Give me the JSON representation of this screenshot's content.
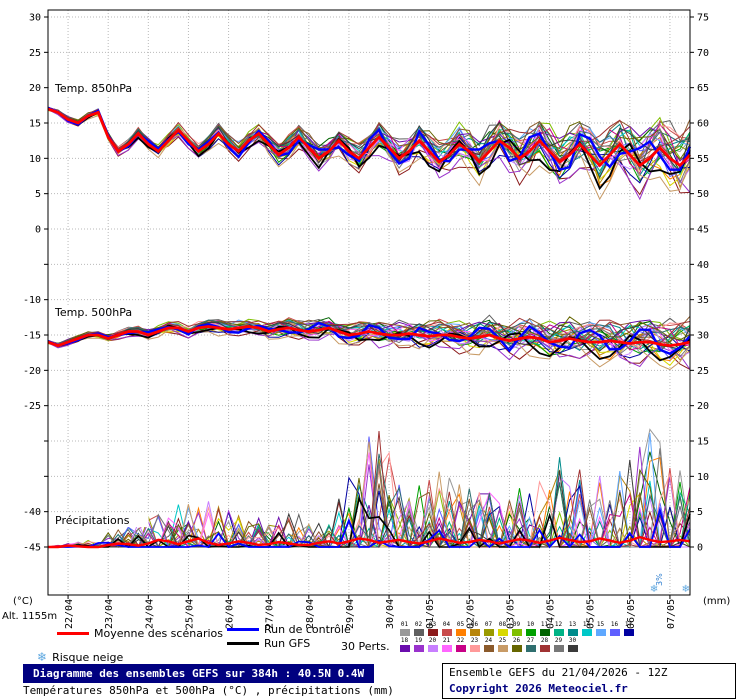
{
  "axes": {
    "left_unit": "(°C)",
    "right_unit": "(mm)",
    "left_labels": [
      30,
      25,
      20,
      15,
      10,
      5,
      0,
      -10,
      -15,
      -20,
      -25,
      -40,
      -45
    ],
    "right_labels": [
      75,
      70,
      65,
      60,
      55,
      50,
      45,
      40,
      35,
      30,
      25,
      20,
      15,
      10,
      5,
      0
    ],
    "dates": [
      "22/04",
      "23/04",
      "24/04",
      "25/04",
      "26/04",
      "27/04",
      "28/04",
      "29/04",
      "30/04",
      "01/05",
      "02/05",
      "03/05",
      "04/05",
      "05/05",
      "06/05",
      "07/05"
    ]
  },
  "chart_data": [
    {
      "type": "line",
      "panel": "temp850",
      "title": "Temp. 850hPa",
      "x_start": "21/04 12Z",
      "x_end": "07/05 12Z",
      "x_step_hours": 6,
      "mean": [
        17,
        16.5,
        15.5,
        15,
        16,
        16.5,
        13,
        11,
        12,
        13.5,
        12,
        11,
        12.5,
        14,
        12.5,
        11,
        12,
        13.5,
        12,
        11,
        12.5,
        13.5,
        12,
        10.5,
        11.5,
        13,
        11.5,
        10,
        11,
        12.5,
        11,
        10,
        11.5,
        13,
        11.5,
        10,
        11,
        12.5,
        11,
        9.5,
        10.5,
        12,
        11,
        9.5,
        11,
        12.5,
        11.5,
        10,
        11,
        12.5,
        11,
        9.5,
        10.5,
        12,
        10.5,
        9,
        10.5,
        12,
        10.5,
        9,
        10,
        11.5,
        10,
        9,
        10.5
      ],
      "spread_daily": [
        0.3,
        0.5,
        0.8,
        1,
        1.2,
        1.5,
        1.8,
        2,
        2.3,
        2.6,
        3,
        3.3,
        3.6,
        4,
        4.5,
        5,
        5.5
      ],
      "series_meta": {
        "mean": "Moyenne des scénarios",
        "control": "Run de contrôle",
        "gfs": "Run GFS",
        "members": 30
      }
    },
    {
      "type": "line",
      "panel": "temp500",
      "title": "Temp. 500hPa",
      "x_start": "21/04 12Z",
      "x_end": "07/05 12Z",
      "x_step_hours": 6,
      "mean": [
        -16,
        -16.5,
        -16,
        -15.5,
        -15,
        -15,
        -15.5,
        -15,
        -14.5,
        -14.5,
        -15,
        -14.5,
        -14,
        -14,
        -14.5,
        -14,
        -13.8,
        -14,
        -14.2,
        -14,
        -13.8,
        -14,
        -14.5,
        -14.2,
        -14,
        -14.3,
        -14.5,
        -14.3,
        -14,
        -14.5,
        -15,
        -14.8,
        -14.5,
        -14.8,
        -15,
        -15,
        -14.8,
        -15,
        -15.2,
        -15,
        -15,
        -15.3,
        -15.5,
        -15.3,
        -15,
        -15.5,
        -15.8,
        -15.5,
        -15.3,
        -15.5,
        -16,
        -15.8,
        -15.5,
        -15.8,
        -16,
        -16,
        -15.8,
        -16,
        -16.2,
        -16,
        -16,
        -16.3,
        -16.5,
        -16.3,
        -16
      ],
      "spread_daily": [
        0.3,
        0.5,
        0.7,
        0.9,
        1,
        1.2,
        1.4,
        1.6,
        1.8,
        2,
        2.2,
        2.5,
        2.8,
        3,
        3.3,
        3.6,
        4
      ]
    },
    {
      "type": "line",
      "panel": "precip",
      "title": "Précipitations",
      "unit": "mm",
      "x_start": "21/04 12Z",
      "x_end": "07/05 12Z",
      "x_step_hours": 6,
      "mean": [
        0,
        0,
        0.2,
        0.1,
        0,
        0,
        0.3,
        0.5,
        0.4,
        0.2,
        0.5,
        1,
        0.8,
        0.4,
        0.8,
        1.2,
        0.6,
        0.3,
        0.5,
        0.8,
        0.6,
        0.3,
        0.4,
        0.7,
        0.5,
        0.3,
        0.3,
        0.6,
        0.8,
        0.5,
        0.8,
        1.2,
        1,
        0.6,
        0.8,
        1,
        0.7,
        0.5,
        0.8,
        1.2,
        0.9,
        0.6,
        0.7,
        1,
        0.8,
        0.5,
        0.8,
        1.1,
        0.9,
        0.6,
        0.9,
        1.3,
        1,
        0.7,
        0.8,
        1.2,
        0.9,
        0.6,
        0.9,
        1.4,
        1,
        0.7,
        0.8,
        1,
        0.8
      ],
      "env_max_daily": [
        0,
        1,
        3,
        6,
        7,
        4,
        5,
        4,
        20,
        8,
        12,
        8,
        10,
        14,
        9,
        17,
        10
      ]
    }
  ],
  "legend": {
    "mean": "Moyenne des scénarios",
    "control": "Run de contrôle",
    "gfs": "Run GFS",
    "perts_label": "30 Perts.",
    "snow": "Risque neige",
    "snow_icon": "❄",
    "member_ids": [
      "01",
      "02",
      "03",
      "04",
      "05",
      "06",
      "07",
      "08",
      "09",
      "10",
      "11",
      "12",
      "13",
      "14",
      "15",
      "16",
      "17",
      "18",
      "19",
      "20",
      "21",
      "22",
      "23",
      "24",
      "25",
      "26",
      "27",
      "28",
      "29",
      "30"
    ],
    "member_colors": [
      "#999999",
      "#5f5f5f",
      "#8b1a1a",
      "#c84b4b",
      "#ff7f00",
      "#b8860b",
      "#9a9a00",
      "#d8d800",
      "#7fbf00",
      "#00a000",
      "#006400",
      "#00b386",
      "#008b8b",
      "#00c8c8",
      "#5fa8ff",
      "#5f5fff",
      "#0000a0",
      "#6a0dad",
      "#9932cc",
      "#c87fff",
      "#ff66ff",
      "#c80086",
      "#ff9999",
      "#8b5a2b",
      "#c89b66",
      "#666600",
      "#2f6f6f",
      "#a03333",
      "#777777",
      "#3a3a3a"
    ]
  },
  "colors": {
    "mean": "#ff0000",
    "control": "#0000ff",
    "gfs": "#000000",
    "title_bg": "#000080",
    "snow": "#5fa8e0",
    "grid": "#b9b9b9"
  },
  "annotations": {
    "snow_markers": [
      {
        "t": 363,
        "label": "3%"
      },
      {
        "t": 382,
        "label": ""
      }
    ]
  },
  "footer": {
    "alt": "Alt. 1155m",
    "title": "Diagramme des ensembles GEFS sur 384h : 40.5N 0.4W",
    "subtitle": "Températures 850hPa et 500hPa (°C) , précipitations (mm)",
    "run_info": "Ensemble GEFS du 21/04/2026 - 12Z",
    "copyright": "Copyright 2026 Meteociel.fr"
  }
}
